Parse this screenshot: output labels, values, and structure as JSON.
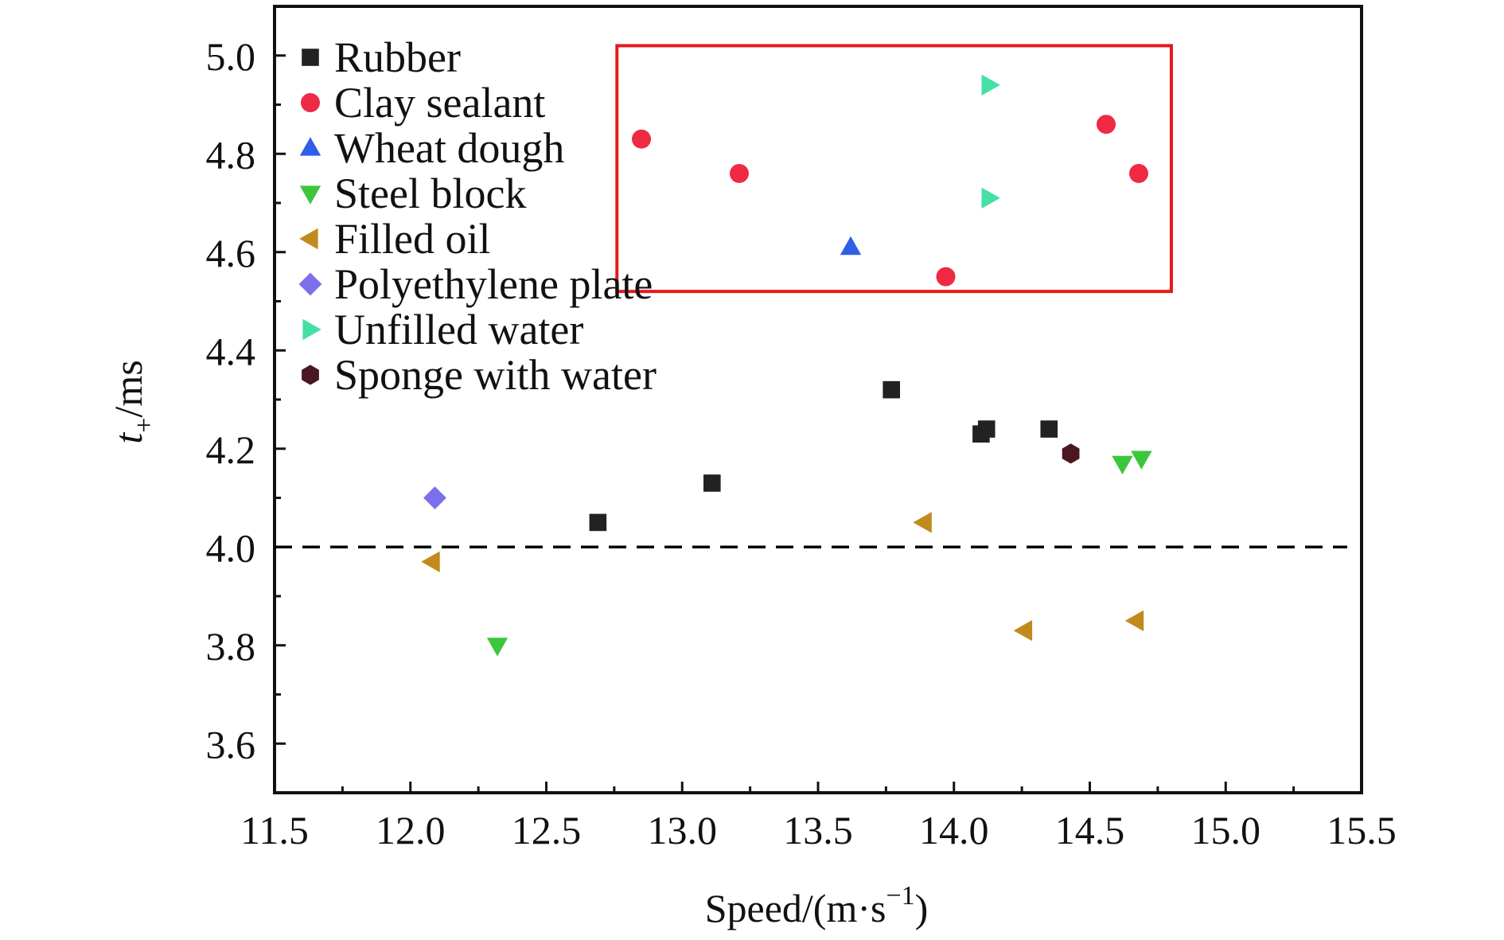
{
  "chart_data": {
    "type": "scatter",
    "xlabel": "Speed/(m·s",
    "xlabel_sup": "−1",
    "xlabel_close": ")",
    "ylabel_main": "t",
    "ylabel_sub": "+",
    "ylabel_unit": "/ms",
    "xlim": [
      11.5,
      15.5
    ],
    "ylim": [
      3.5,
      5.1
    ],
    "xticks": [
      11.5,
      12.0,
      12.5,
      13.0,
      13.5,
      14.0,
      14.5,
      15.0,
      15.5
    ],
    "xtick_labels": [
      "11.5",
      "12.0",
      "12.5",
      "13.0",
      "13.5",
      "14.0",
      "14.5",
      "15.0",
      "15.5"
    ],
    "yticks": [
      3.6,
      3.8,
      4.0,
      4.2,
      4.4,
      4.6,
      4.8,
      5.0
    ],
    "ytick_labels": [
      "3.6",
      "3.8",
      "4.0",
      "4.2",
      "4.4",
      "4.6",
      "4.8",
      "5.0"
    ],
    "grid": false,
    "legend_position": "top-left",
    "reference_line": {
      "y": 4.0,
      "style": "dashed",
      "color": "#000000"
    },
    "highlight_box": {
      "x": [
        12.76,
        14.8
      ],
      "y": [
        4.52,
        5.02
      ],
      "color": "#e31a1c"
    },
    "series": [
      {
        "name": "Rubber",
        "marker": "square",
        "color": "#222222",
        "points": [
          [
            12.69,
            4.05
          ],
          [
            13.11,
            4.13
          ],
          [
            13.77,
            4.32
          ],
          [
            14.1,
            4.23
          ],
          [
            14.12,
            4.24
          ],
          [
            14.35,
            4.24
          ]
        ]
      },
      {
        "name": "Clay sealant",
        "marker": "circle",
        "color": "#ef2a44",
        "points": [
          [
            12.85,
            4.83
          ],
          [
            13.21,
            4.76
          ],
          [
            13.97,
            4.55
          ],
          [
            14.56,
            4.86
          ],
          [
            14.68,
            4.76
          ]
        ]
      },
      {
        "name": "Wheat dough",
        "marker": "triangle-up",
        "color": "#2f5fe8",
        "points": [
          [
            13.62,
            4.61
          ]
        ]
      },
      {
        "name": "Steel block",
        "marker": "triangle-down",
        "color": "#3cc63c",
        "points": [
          [
            12.32,
            3.8
          ],
          [
            14.62,
            4.17
          ],
          [
            14.69,
            4.18
          ]
        ]
      },
      {
        "name": "Filled oil",
        "marker": "triangle-left",
        "color": "#c18a1c",
        "points": [
          [
            12.08,
            3.97
          ],
          [
            13.89,
            4.05
          ],
          [
            14.26,
            3.83
          ],
          [
            14.67,
            3.85
          ]
        ]
      },
      {
        "name": "Polyethylene plate",
        "marker": "diamond",
        "color": "#7b6fea",
        "points": [
          [
            12.09,
            4.1
          ]
        ]
      },
      {
        "name": "Unfilled water",
        "marker": "triangle-right",
        "color": "#44e0a4",
        "points": [
          [
            14.13,
            4.94
          ],
          [
            14.13,
            4.71
          ]
        ]
      },
      {
        "name": "Sponge with water",
        "marker": "hexagon",
        "color": "#4a1722",
        "points": [
          [
            14.43,
            4.19
          ]
        ]
      }
    ]
  }
}
